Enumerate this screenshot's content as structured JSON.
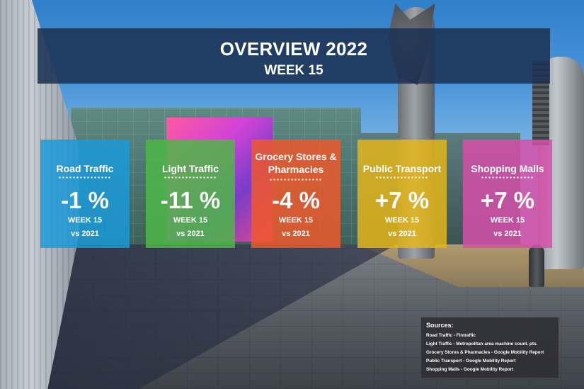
{
  "header": {
    "title": "OVERVIEW 2022",
    "subtitle": "WEEK 15"
  },
  "cards": [
    {
      "label": "Road Traffic",
      "value": "-1 %",
      "week": "WEEK 15",
      "compare": "vs 2021",
      "color": "#1a9ad8"
    },
    {
      "label": "Light Traffic",
      "value": "-11 %",
      "week": "WEEK 15",
      "compare": "vs 2021",
      "color": "#4cb944"
    },
    {
      "label": "Grocery Stores & Pharmacies",
      "value": "-4 %",
      "week": "WEEK 15",
      "compare": "vs 2021",
      "color": "#f0582a"
    },
    {
      "label": "Public Transport",
      "value": "+7 %",
      "week": "WEEK 15",
      "compare": "vs 2021",
      "color": "#e6b618"
    },
    {
      "label": "Shopping Malls",
      "value": "+7 %",
      "week": "WEEK 15",
      "compare": "vs 2021",
      "color": "#d64faa"
    }
  ],
  "sources": {
    "heading": "Sources:",
    "items": [
      "Road Traffic - Fintraffic",
      "Light Traffic - Metropolitan area machine count. pts.",
      "Grocery Stores & Pharmacies - Google Mobility Report",
      "Public Transport - Google Mobility Report",
      "Shopping Malls - Google Mobility Report"
    ]
  }
}
